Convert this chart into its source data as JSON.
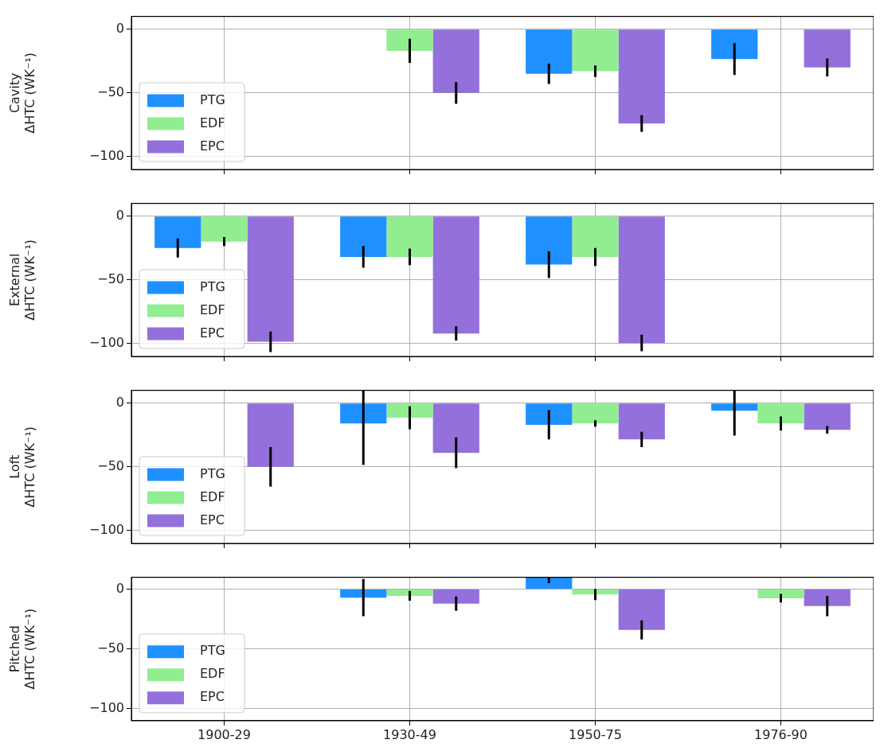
{
  "chart_data": [
    {
      "type": "bar",
      "ylabel": "Cavity\nΔHTC (WK⁻¹)",
      "categories": [
        "1900-29",
        "1930-49",
        "1950-75",
        "1976-90"
      ],
      "ylim": [
        -110,
        10
      ],
      "yticks": [
        0,
        -50,
        -100
      ],
      "grid": true,
      "legend": "bottom left",
      "tick_labels": "y",
      "series": [
        {
          "name": "PTG",
          "color": "#1e90ff",
          "values": [
            null,
            null,
            -35,
            -23.5
          ],
          "errors": [
            null,
            null,
            8,
            12.5
          ]
        },
        {
          "name": "EDF",
          "color": "#90ee90",
          "values": [
            null,
            -17,
            -33,
            null
          ],
          "errors": [
            null,
            9.5,
            4.5,
            null
          ]
        },
        {
          "name": "EPC",
          "color": "#9370db",
          "values": [
            null,
            -50,
            -74,
            -30
          ],
          "errors": [
            null,
            8.5,
            6.5,
            7
          ]
        }
      ]
    },
    {
      "type": "bar",
      "ylabel": "External\nΔHTC (WK⁻¹)",
      "categories": [
        "1900-29",
        "1930-49",
        "1950-75",
        "1976-90"
      ],
      "ylim": [
        -110,
        10
      ],
      "yticks": [
        0,
        -50,
        -100
      ],
      "grid": true,
      "legend": "bottom left",
      "tick_labels": "y",
      "series": [
        {
          "name": "PTG",
          "color": "#1e90ff",
          "values": [
            -25,
            -32,
            -38,
            null
          ],
          "errors": [
            7.5,
            8.5,
            10.5,
            null
          ]
        },
        {
          "name": "EDF",
          "color": "#90ee90",
          "values": [
            -20,
            -32,
            -32,
            null
          ],
          "errors": [
            3.5,
            6.5,
            7,
            null
          ]
        },
        {
          "name": "EPC",
          "color": "#9370db",
          "values": [
            -98.5,
            -92,
            -99.5,
            null
          ],
          "errors": [
            8,
            5.5,
            6.5,
            null
          ]
        }
      ]
    },
    {
      "type": "bar",
      "ylabel": "Loft\nΔHTC (WK⁻¹)",
      "categories": [
        "1900-29",
        "1930-49",
        "1950-75",
        "1976-90"
      ],
      "ylim": [
        -110,
        10
      ],
      "yticks": [
        0,
        -50,
        -100
      ],
      "grid": true,
      "legend": "bottom left",
      "tick_labels": "y",
      "series": [
        {
          "name": "PTG",
          "color": "#1e90ff",
          "values": [
            null,
            -16,
            -17,
            -6
          ],
          "errors": [
            null,
            32.5,
            11.5,
            19.5
          ]
        },
        {
          "name": "EDF",
          "color": "#90ee90",
          "values": [
            null,
            -11.5,
            -16,
            -16
          ],
          "errors": [
            null,
            9,
            2.5,
            5.5
          ]
        },
        {
          "name": "EPC",
          "color": "#9370db",
          "values": [
            -50,
            -39,
            -28.5,
            -21
          ],
          "errors": [
            15.5,
            12,
            6,
            3
          ]
        }
      ]
    },
    {
      "type": "bar",
      "ylabel": "Pitched\nΔHTC (WK⁻¹)",
      "categories": [
        "1900-29",
        "1930-49",
        "1950-75",
        "1976-90"
      ],
      "ylim": [
        -110,
        10
      ],
      "yticks": [
        0,
        -50,
        -100
      ],
      "grid": true,
      "legend": "bottom left",
      "series": [
        {
          "name": "PTG",
          "color": "#1e90ff",
          "values": [
            null,
            -7,
            10,
            null
          ],
          "errors": [
            null,
            15.5,
            5,
            null
          ]
        },
        {
          "name": "EDF",
          "color": "#90ee90",
          "values": [
            null,
            -5.5,
            -4.5,
            -7.5
          ],
          "errors": [
            null,
            4,
            4.5,
            3.5
          ]
        },
        {
          "name": "EPC",
          "color": "#9370db",
          "values": [
            null,
            -12,
            -34,
            -14
          ],
          "errors": [
            null,
            6,
            8,
            8.5
          ]
        }
      ]
    }
  ]
}
